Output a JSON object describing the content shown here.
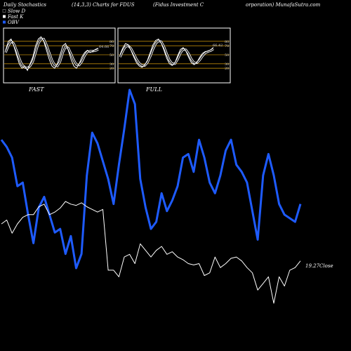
{
  "header": {
    "title": "Daily Stochastics",
    "params": "(14,3,3) Charts for FDUS",
    "company": "(Fidus Investment C",
    "site": "orporation) MunafaSutra.com"
  },
  "legend": [
    {
      "label": "Slow  D",
      "color": "#000000"
    },
    {
      "label": "Fast  K",
      "color": "#ffffff"
    },
    {
      "label": "OBV",
      "color": "#1e5bff"
    }
  ],
  "colors": {
    "background": "#000000",
    "grid": "#b8860b",
    "price": "#ffffff",
    "obv": "#1e5bff"
  },
  "chart_data": [
    {
      "type": "line",
      "label": "FAST",
      "value_label": "64.66",
      "ylim": [
        0,
        100
      ],
      "yticks": [
        20,
        30,
        50,
        70,
        80
      ],
      "series": [
        {
          "name": "Fast K",
          "values": [
            60,
            80,
            85,
            70,
            50,
            30,
            20,
            25,
            15,
            30,
            45,
            70,
            85,
            90,
            80,
            60,
            40,
            25,
            20,
            30,
            50,
            70,
            75,
            60,
            40,
            25,
            20,
            30,
            45,
            55,
            60,
            55,
            58,
            62,
            64.66
          ]
        },
        {
          "name": "Slow D",
          "values": [
            55,
            70,
            80,
            75,
            60,
            42,
            28,
            22,
            20,
            25,
            35,
            55,
            75,
            85,
            85,
            72,
            55,
            38,
            27,
            25,
            35,
            55,
            68,
            65,
            52,
            38,
            28,
            27,
            35,
            48,
            57,
            58,
            58,
            59,
            62
          ]
        }
      ]
    },
    {
      "type": "line",
      "label": "FULL",
      "value_label": "66.42",
      "ylim": [
        0,
        100
      ],
      "yticks": [
        20,
        30,
        50,
        70,
        80
      ],
      "series": [
        {
          "name": "Fast K",
          "values": [
            50,
            65,
            75,
            72,
            60,
            45,
            32,
            25,
            22,
            27,
            38,
            55,
            72,
            82,
            85,
            76,
            60,
            42,
            30,
            26,
            32,
            48,
            62,
            66,
            58,
            44,
            32,
            28,
            33,
            44,
            53,
            57,
            58,
            61,
            66.42
          ]
        },
        {
          "name": "Slow D",
          "values": [
            45,
            58,
            68,
            70,
            64,
            52,
            40,
            31,
            26,
            26,
            33,
            46,
            62,
            75,
            81,
            79,
            68,
            52,
            38,
            30,
            30,
            40,
            54,
            62,
            61,
            52,
            40,
            32,
            32,
            38,
            47,
            54,
            57,
            59,
            63
          ]
        }
      ]
    },
    {
      "type": "line",
      "label": "main",
      "value_label": "19.27",
      "value_suffix": "Close",
      "series": [
        {
          "name": "OBV",
          "values": [
            302,
            300,
            297,
            289,
            290,
            281,
            273,
            283,
            286,
            281,
            276,
            277,
            270,
            275,
            266,
            270,
            292,
            304,
            301,
            296,
            291,
            284,
            295,
            305,
            316,
            312,
            291,
            283,
            277,
            279,
            287,
            282,
            285,
            289,
            297,
            298,
            293,
            302,
            297,
            290,
            287,
            292,
            299,
            302,
            295,
            293,
            290,
            282,
            274,
            292,
            298,
            292,
            284,
            281,
            280,
            279,
            284
          ]
        },
        {
          "name": "Close",
          "values": [
            19.55,
            19.58,
            19.48,
            19.55,
            19.6,
            19.62,
            19.62,
            19.68,
            19.7,
            19.62,
            19.64,
            19.67,
            19.72,
            19.7,
            19.69,
            19.71,
            19.68,
            19.66,
            19.64,
            19.66,
            19.2,
            19.2,
            19.15,
            19.3,
            19.32,
            19.25,
            19.4,
            19.35,
            19.3,
            19.35,
            19.38,
            19.32,
            19.34,
            19.3,
            19.28,
            19.25,
            19.24,
            19.25,
            19.16,
            19.18,
            19.3,
            19.22,
            19.25,
            19.29,
            19.3,
            19.27,
            19.22,
            19.18,
            19.05,
            19.1,
            19.15,
            18.95,
            19.15,
            19.08,
            19.2,
            19.22,
            19.27
          ]
        }
      ]
    }
  ]
}
